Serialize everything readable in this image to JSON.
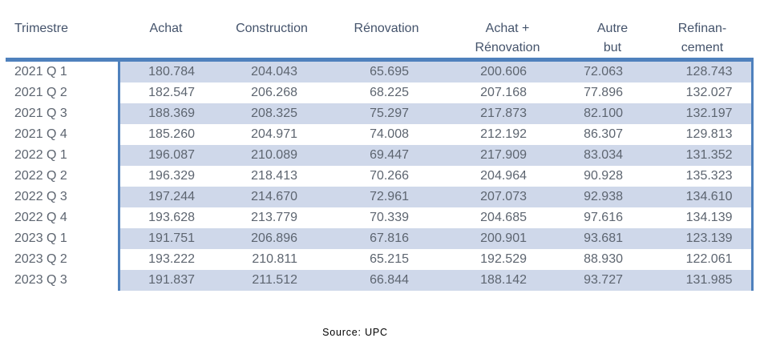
{
  "chart_data": {
    "type": "table",
    "columns": [
      "Trimestre",
      "Achat",
      "Construction",
      "Rénovation",
      "Achat +\nRénovation",
      "Autre\nbut",
      "Refinan-\ncement"
    ],
    "rows": [
      {
        "quarter": "2021 Q 1",
        "values": [
          "180.784",
          "204.043",
          "65.695",
          "200.606",
          "72.063",
          "128.743"
        ]
      },
      {
        "quarter": "2021 Q 2",
        "values": [
          "182.547",
          "206.268",
          "68.225",
          "207.168",
          "77.896",
          "132.027"
        ]
      },
      {
        "quarter": "2021 Q 3",
        "values": [
          "188.369",
          "208.325",
          "75.297",
          "217.873",
          "82.100",
          "132.197"
        ]
      },
      {
        "quarter": "2021 Q 4",
        "values": [
          "185.260",
          "204.971",
          "74.008",
          "212.192",
          "86.307",
          "129.813"
        ]
      },
      {
        "quarter": "2022 Q 1",
        "values": [
          "196.087",
          "210.089",
          "69.447",
          "217.909",
          "83.034",
          "131.352"
        ]
      },
      {
        "quarter": "2022 Q 2",
        "values": [
          "196.329",
          "218.413",
          "70.266",
          "204.964",
          "90.928",
          "135.323"
        ]
      },
      {
        "quarter": "2022 Q 3",
        "values": [
          "197.244",
          "214.670",
          "72.961",
          "207.073",
          "92.938",
          "134.610"
        ]
      },
      {
        "quarter": "2022 Q 4",
        "values": [
          "193.628",
          "213.779",
          "70.339",
          "204.685",
          "97.616",
          "134.139"
        ]
      },
      {
        "quarter": "2023 Q 1",
        "values": [
          "191.751",
          "206.896",
          "67.816",
          "200.901",
          "93.681",
          "123.139"
        ]
      },
      {
        "quarter": "2023 Q 2",
        "values": [
          "193.222",
          "210.811",
          "65.215",
          "192.529",
          "88.930",
          "122.061"
        ]
      },
      {
        "quarter": "2023 Q 3",
        "values": [
          "191.837",
          "211.512",
          "66.844",
          "188.142",
          "93.727",
          "131.985"
        ]
      }
    ],
    "source": "Source: UPC",
    "layout": {
      "banded_rows": true,
      "banding_applies_to": "value-columns-only",
      "first_row_banded": true,
      "header_separator": "thick-line",
      "vertical_rules": "left-and-right-of-value-area"
    },
    "colors": {
      "accent_line": "#4F81BD",
      "row_band": "#CFD8EA",
      "header_text": "#44536B",
      "body_text": "#5D6570",
      "source_text": "#000000",
      "background": "#FFFFFF"
    }
  }
}
